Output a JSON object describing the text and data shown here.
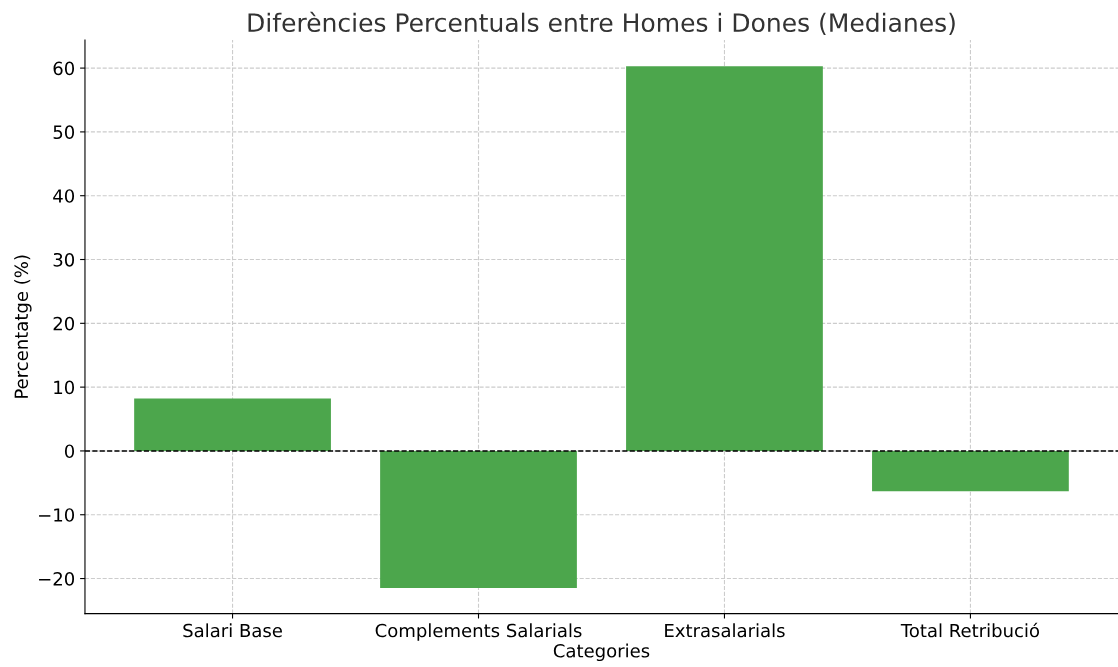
{
  "chart_data": {
    "type": "bar",
    "title": "Diferències Percentuals entre Homes i Dones (Medianes)",
    "xlabel": "Categories",
    "ylabel": "Percentatge (%)",
    "categories": [
      "Salari Base",
      "Complements Salarials",
      "Extrasalarials",
      "Total Retribució"
    ],
    "values": [
      8.2,
      -21.5,
      60.3,
      -6.3
    ],
    "color": "#4ca64c",
    "ylim": [
      -25.5,
      64.4
    ],
    "yticks": [
      -20,
      -10,
      0,
      10,
      20,
      30,
      40,
      50,
      60
    ],
    "grid": true,
    "ref_lines": [
      {
        "axis": "y",
        "value": 0,
        "color": "#000000",
        "line_style": "dashed"
      }
    ]
  }
}
